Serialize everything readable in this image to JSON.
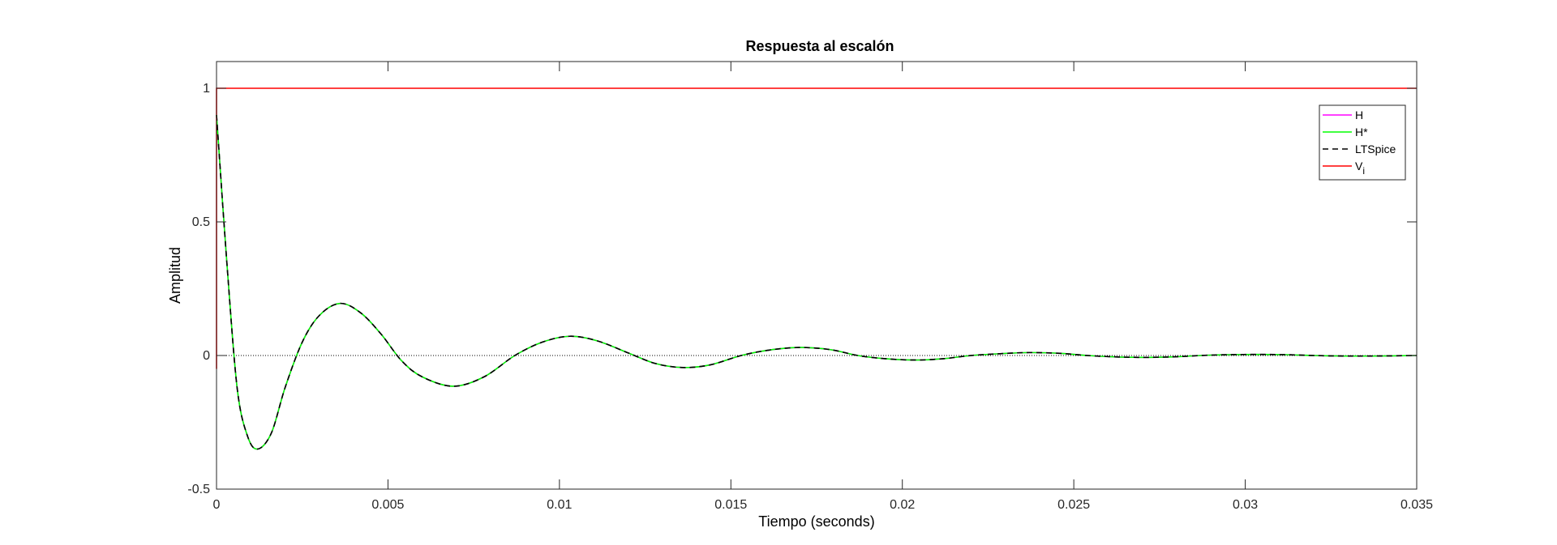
{
  "chart_data": {
    "type": "line",
    "title": "Respuesta al escalón",
    "xlabel": "Tiempo (seconds)",
    "ylabel": "Amplitud",
    "xlim": [
      0,
      0.035
    ],
    "ylim": [
      -0.5,
      1.1
    ],
    "grid": false,
    "legend_position": "top-right",
    "x_ticks": [
      {
        "value": 0,
        "label": "0"
      },
      {
        "value": 0.005,
        "label": "0.005"
      },
      {
        "value": 0.01,
        "label": "0.01"
      },
      {
        "value": 0.015,
        "label": "0.015"
      },
      {
        "value": 0.02,
        "label": "0.02"
      },
      {
        "value": 0.025,
        "label": "0.025"
      },
      {
        "value": 0.03,
        "label": "0.03"
      },
      {
        "value": 0.035,
        "label": "0.035"
      }
    ],
    "y_ticks": [
      {
        "value": -0.5,
        "label": "-0.5"
      },
      {
        "value": 0,
        "label": "0"
      },
      {
        "value": 0.5,
        "label": "0.5"
      },
      {
        "value": 1,
        "label": "1"
      }
    ],
    "reference_line": {
      "y": 0,
      "style": "dotted",
      "color": "#000000"
    },
    "series": [
      {
        "name": "H",
        "color": "#ff00ff",
        "dash": "solid",
        "x": [
          0,
          0.0003,
          0.0006,
          0.0009,
          0.0012,
          0.0016,
          0.002,
          0.0025,
          0.003,
          0.0036,
          0.0042,
          0.0048,
          0.0054,
          0.006,
          0.0069,
          0.0078,
          0.0087,
          0.0095,
          0.0103,
          0.0111,
          0.012,
          0.0128,
          0.0136,
          0.0144,
          0.0153,
          0.0161,
          0.017,
          0.0179,
          0.0187,
          0.0195,
          0.0204,
          0.0212,
          0.022,
          0.0229,
          0.0237,
          0.0246,
          0.0254,
          0.0262,
          0.027,
          0.0279,
          0.0287,
          0.0295,
          0.0304,
          0.0312,
          0.032,
          0.0329,
          0.0337,
          0.035
        ],
        "y": [
          0.9,
          0.35,
          -0.12,
          -0.3,
          -0.35,
          -0.29,
          -0.12,
          0.05,
          0.15,
          0.195,
          0.16,
          0.08,
          -0.02,
          -0.08,
          -0.115,
          -0.08,
          0.0,
          0.05,
          0.072,
          0.055,
          0.01,
          -0.03,
          -0.045,
          -0.035,
          0.0,
          0.02,
          0.03,
          0.022,
          0.0,
          -0.012,
          -0.017,
          -0.012,
          0.0,
          0.007,
          0.011,
          0.008,
          0.0,
          -0.005,
          -0.007,
          -0.005,
          0.0,
          0.003,
          0.004,
          0.003,
          0.0,
          -0.002,
          -0.002,
          0.0
        ]
      },
      {
        "name": "H*",
        "color": "#00ff00",
        "dash": "solid",
        "x": [
          0,
          0.0003,
          0.0006,
          0.0009,
          0.0012,
          0.0016,
          0.002,
          0.0025,
          0.003,
          0.0036,
          0.0042,
          0.0048,
          0.0054,
          0.006,
          0.0069,
          0.0078,
          0.0087,
          0.0095,
          0.0103,
          0.0111,
          0.012,
          0.0128,
          0.0136,
          0.0144,
          0.0153,
          0.0161,
          0.017,
          0.0179,
          0.0187,
          0.0195,
          0.0204,
          0.0212,
          0.022,
          0.0229,
          0.0237,
          0.0246,
          0.0254,
          0.0262,
          0.027,
          0.0279,
          0.0287,
          0.0295,
          0.0304,
          0.0312,
          0.032,
          0.0329,
          0.0337,
          0.035
        ],
        "y": [
          0.9,
          0.35,
          -0.12,
          -0.3,
          -0.35,
          -0.29,
          -0.12,
          0.05,
          0.15,
          0.195,
          0.16,
          0.08,
          -0.02,
          -0.08,
          -0.115,
          -0.08,
          0.0,
          0.05,
          0.072,
          0.055,
          0.01,
          -0.03,
          -0.045,
          -0.035,
          0.0,
          0.02,
          0.03,
          0.022,
          0.0,
          -0.012,
          -0.017,
          -0.012,
          0.0,
          0.007,
          0.011,
          0.008,
          0.0,
          -0.005,
          -0.007,
          -0.005,
          0.0,
          0.003,
          0.004,
          0.003,
          0.0,
          -0.002,
          -0.002,
          0.0
        ]
      },
      {
        "name": "LTSpice",
        "color": "#000000",
        "dash": "dashed",
        "x": [
          0,
          0.0003,
          0.0006,
          0.0009,
          0.0012,
          0.0016,
          0.002,
          0.0025,
          0.003,
          0.0036,
          0.0042,
          0.0048,
          0.0054,
          0.006,
          0.0069,
          0.0078,
          0.0087,
          0.0095,
          0.0103,
          0.0111,
          0.012,
          0.0128,
          0.0136,
          0.0144,
          0.0153,
          0.0161,
          0.017,
          0.0179,
          0.0187,
          0.0195,
          0.0204,
          0.0212,
          0.022,
          0.0229,
          0.0237,
          0.0246,
          0.0254,
          0.0262,
          0.027,
          0.0279,
          0.0287,
          0.0295,
          0.0304,
          0.0312,
          0.032,
          0.0329,
          0.0337,
          0.035
        ],
        "y": [
          0.9,
          0.35,
          -0.12,
          -0.3,
          -0.35,
          -0.29,
          -0.12,
          0.05,
          0.15,
          0.195,
          0.16,
          0.08,
          -0.02,
          -0.08,
          -0.115,
          -0.08,
          0.0,
          0.05,
          0.072,
          0.055,
          0.01,
          -0.03,
          -0.045,
          -0.035,
          0.0,
          0.02,
          0.03,
          0.022,
          0.0,
          -0.012,
          -0.017,
          -0.012,
          0.0,
          0.007,
          0.011,
          0.008,
          0.0,
          -0.005,
          -0.007,
          -0.005,
          0.0,
          0.003,
          0.004,
          0.003,
          0.0,
          -0.002,
          -0.002,
          0.0
        ]
      },
      {
        "name": "V",
        "name_subscript": "i",
        "color": "#ff0000",
        "dash": "solid",
        "x": [
          0,
          0,
          0.035
        ],
        "y": [
          -0.05,
          1,
          1
        ]
      }
    ]
  }
}
